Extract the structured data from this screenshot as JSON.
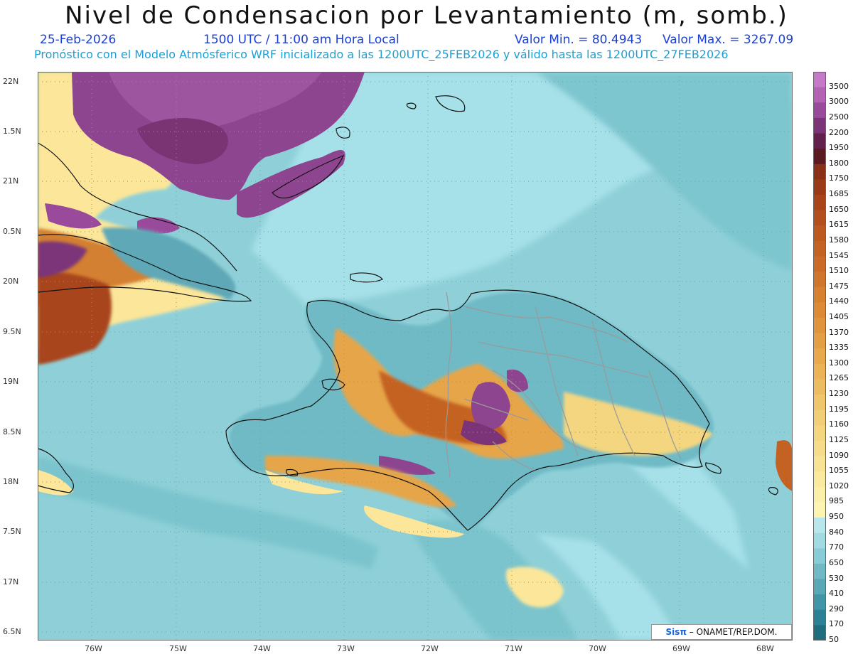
{
  "header": {
    "title": "Nivel de Condensacion por Levantamiento (m, somb.)",
    "date": "25-Feb-2026",
    "time": "1500 UTC / 11:00 am Hora Local",
    "min_label": "Valor Min. = 80.4943",
    "max_label": "Valor Max. = 3267.09",
    "forecast": "Pronóstico con el Modelo Atmósferico WRF inicializado a las 1200UTC_25FEB2026 y válido hasta las  1200UTC_27FEB2026"
  },
  "map": {
    "lon_labels": [
      "76W",
      "75W",
      "74W",
      "73W",
      "72W",
      "71W",
      "70W",
      "69W",
      "68W"
    ],
    "lat_labels": [
      "22N",
      "1.5N",
      "21N",
      "0.5N",
      "20N",
      "9.5N",
      "19N",
      "8.5N",
      "18N",
      "7.5N",
      "17N",
      "6.5N"
    ]
  },
  "legend": {
    "levels": [
      "3500",
      "3000",
      "2500",
      "2200",
      "1950",
      "1800",
      "1750",
      "1685",
      "1650",
      "1615",
      "1580",
      "1545",
      "1510",
      "1475",
      "1440",
      "1405",
      "1370",
      "1335",
      "1300",
      "1265",
      "1230",
      "1195",
      "1160",
      "1125",
      "1090",
      "1055",
      "1020",
      "985",
      "950",
      "840",
      "770",
      "650",
      "530",
      "410",
      "290",
      "170",
      "50"
    ],
    "colors": [
      "#c67ac6",
      "#b462b4",
      "#9a4a9a",
      "#7c3478",
      "#62204e",
      "#5a1a20",
      "#8a3018",
      "#9a3a18",
      "#a84418",
      "#b44e1c",
      "#bd5820",
      "#c46224",
      "#ca6c28",
      "#d0762c",
      "#d68030",
      "#dc8a36",
      "#e0943c",
      "#e49e44",
      "#e8a84c",
      "#ecb256",
      "#eebc60",
      "#f0c66c",
      "#f2ce76",
      "#f4d680",
      "#f6dc8a",
      "#f8e294",
      "#faea9e",
      "#fcf0a8",
      "#fdf4b2",
      "#b8e6ec",
      "#a2dae2",
      "#88ccd6",
      "#70bac6",
      "#58a8b6",
      "#4096a6",
      "#2c8294",
      "#1e6e80"
    ]
  },
  "credit": {
    "sis": "Sis",
    "pi": "π",
    "org": " – ONAMET/REP.DOM."
  }
}
